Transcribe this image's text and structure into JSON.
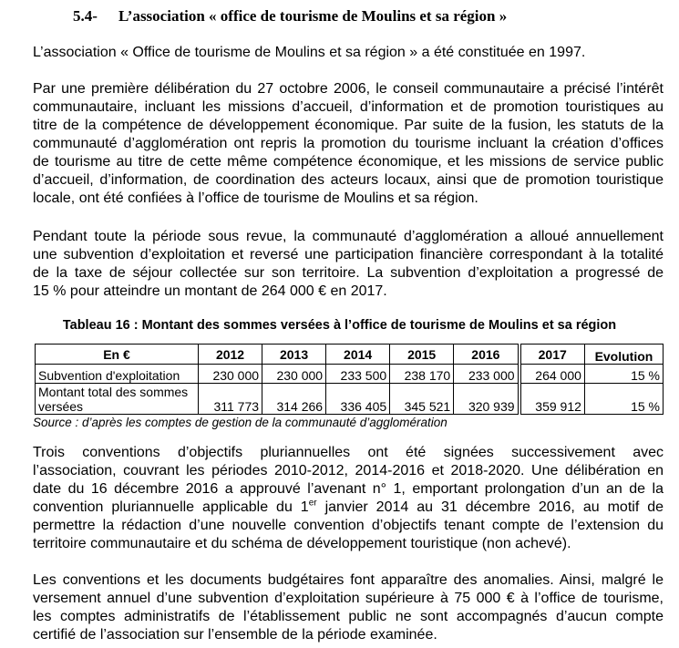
{
  "heading": {
    "number": "5.4-",
    "title": "L’association « office de tourisme de Moulins et sa région »"
  },
  "paragraphs": [
    [
      "L’association « Office de tourisme de Moulins et sa région » a été constituée en 1997."
    ],
    [
      "Par une première délibération du 27 octobre 2006, le conseil communautaire a précisé l’intérêt",
      "communautaire, incluant les missions d’accueil, d’information et de promotion touristiques au",
      "titre de la compétence de développement économique. Par suite de la fusion, les statuts de la",
      "communauté d’agglomération ont repris la promotion du tourisme incluant la création d’offices",
      "de tourisme au titre de cette même compétence économique, et les missions de service public",
      "d’accueil, d’information, de coordination des acteurs locaux, ainsi que de promotion touristique",
      "locale, ont été confiées à l’office de tourisme de Moulins et sa région."
    ],
    [
      "Pendant toute la période sous revue, la communauté d’agglomération a alloué annuellement",
      "une subvention d’exploitation et reversé une participation financière correspondant à la totalité",
      "de la taxe de séjour collectée sur son territoire. La subvention d’exploitation a progressé de",
      "15 % pour atteindre un montant de 264 000 € en 2017."
    ],
    [
      "Trois conventions d’objectifs pluriannuelles ont été signées successivement avec",
      "l’association, couvrant les périodes 2010-2012, 2014-2016 et 2018-2020. Une délibération en",
      "date du 16 décembre 2016 a approuvé l’avenant n° 1, emportant prolongation d’un an de la",
      "convention pluriannuelle applicable du 1er janvier 2014 au 31 décembre 2016, au motif de",
      "permettre la rédaction d’une nouvelle convention d’objectifs tenant compte de l’extension du",
      "territoire communautaire et du schéma de développement touristique (non achevé)."
    ],
    [
      "Les conventions et les documents budgétaires font apparaître des anomalies. Ainsi, malgré le",
      "versement annuel d’une subvention d’exploitation supérieure à 75 000 € à l’office de tourisme,",
      "les comptes administratifs de l’établissement public ne sont accompagnés d’aucun compte",
      "certifié de l’association sur l’ensemble de la période examinée."
    ]
  ],
  "table": {
    "title": "Tableau 16 : Montant des sommes versées à l’office de tourisme de Moulins et sa région",
    "headers": [
      "En €",
      "2012",
      "2013",
      "2014",
      "2015",
      "2016",
      "2017",
      "Evolution"
    ],
    "rows": [
      [
        "Subvention d'exploitation",
        "230 000",
        "230 000",
        "233 500",
        "238 170",
        "233 000",
        "264 000",
        "15 %"
      ],
      [
        "Montant total des sommes versées",
        "311 773",
        "314 266",
        "336 405",
        "345 521",
        "320 939",
        "359 912",
        "15 %"
      ]
    ],
    "source": "Source : d’après les comptes de gestion de la communauté d’agglomération"
  }
}
